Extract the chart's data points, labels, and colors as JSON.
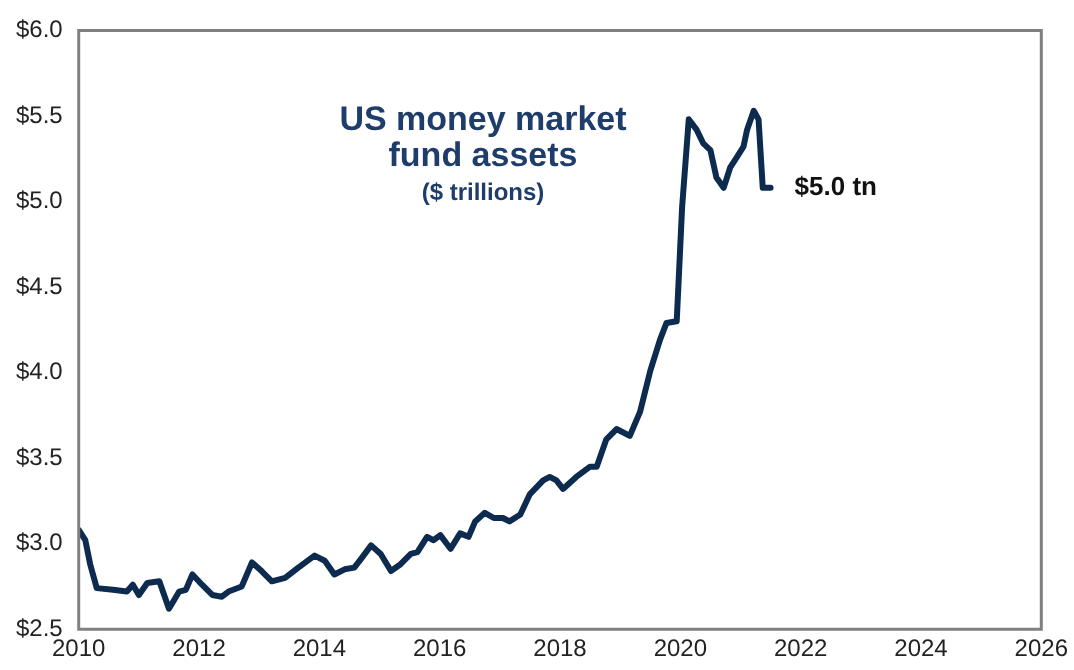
{
  "chart_data": {
    "type": "line",
    "title": "US money market fund assets",
    "subtitle": "($ trillions)",
    "annotations": [
      {
        "text": "$5.0 tn",
        "x": 2021.5,
        "y": 5.08
      }
    ],
    "x": [
      2010.0,
      2010.11,
      2010.19,
      2010.3,
      2010.57,
      2010.8,
      2010.9,
      2011.0,
      2011.14,
      2011.34,
      2011.5,
      2011.67,
      2011.78,
      2011.89,
      2012.05,
      2012.22,
      2012.38,
      2012.49,
      2012.71,
      2012.88,
      2013.04,
      2013.21,
      2013.43,
      2013.65,
      2013.92,
      2014.09,
      2014.25,
      2014.42,
      2014.58,
      2014.69,
      2014.86,
      2015.02,
      2015.19,
      2015.35,
      2015.52,
      2015.63,
      2015.79,
      2015.9,
      2016.01,
      2016.18,
      2016.34,
      2016.48,
      2016.59,
      2016.75,
      2016.9,
      2017.05,
      2017.16,
      2017.34,
      2017.5,
      2017.72,
      2017.83,
      2017.94,
      2018.05,
      2018.27,
      2018.5,
      2018.61,
      2018.77,
      2018.94,
      2019.16,
      2019.33,
      2019.5,
      2019.66,
      2019.77,
      2019.94,
      2020.03,
      2020.14,
      2020.27,
      2020.38,
      2020.5,
      2020.6,
      2020.72,
      2020.83,
      2020.94,
      2021.05,
      2021.11,
      2021.22,
      2021.3,
      2021.37,
      2021.5
    ],
    "series": [
      {
        "color": "#0d2b4e",
        "values": [
          3.08,
          3.02,
          2.88,
          2.74,
          2.73,
          2.72,
          2.76,
          2.7,
          2.77,
          2.78,
          2.62,
          2.72,
          2.73,
          2.82,
          2.76,
          2.7,
          2.69,
          2.72,
          2.75,
          2.89,
          2.84,
          2.78,
          2.8,
          2.86,
          2.93,
          2.9,
          2.82,
          2.85,
          2.86,
          2.91,
          2.99,
          2.94,
          2.84,
          2.88,
          2.94,
          2.95,
          3.04,
          3.02,
          3.05,
          2.97,
          3.06,
          3.04,
          3.13,
          3.18,
          3.15,
          3.15,
          3.13,
          3.17,
          3.29,
          3.37,
          3.39,
          3.37,
          3.32,
          3.39,
          3.45,
          3.45,
          3.61,
          3.67,
          3.63,
          3.77,
          4.01,
          4.19,
          4.29,
          4.3,
          4.97,
          5.48,
          5.42,
          5.34,
          5.3,
          5.14,
          5.08,
          5.2,
          5.26,
          5.32,
          5.42,
          5.53,
          5.48,
          5.08,
          5.08
        ]
      }
    ],
    "xlim": [
      2010,
      2026
    ],
    "xticks": [
      2010,
      2012,
      2014,
      2016,
      2018,
      2020,
      2022,
      2024,
      2026
    ],
    "ylim": [
      2.5,
      6.0
    ],
    "yticks": [
      {
        "value": 2.5,
        "label": "$2.5"
      },
      {
        "value": 3.0,
        "label": "$3.0"
      },
      {
        "value": 3.5,
        "label": "$3.5"
      },
      {
        "value": 4.0,
        "label": "$4.0"
      },
      {
        "value": 4.5,
        "label": "$4.5"
      },
      {
        "value": 5.0,
        "label": "$5.0"
      },
      {
        "value": 5.5,
        "label": "$5.5"
      },
      {
        "value": 6.0,
        "label": "$6.0"
      }
    ],
    "grid": false,
    "legend": false,
    "marker": "none",
    "line_style": "solid"
  }
}
